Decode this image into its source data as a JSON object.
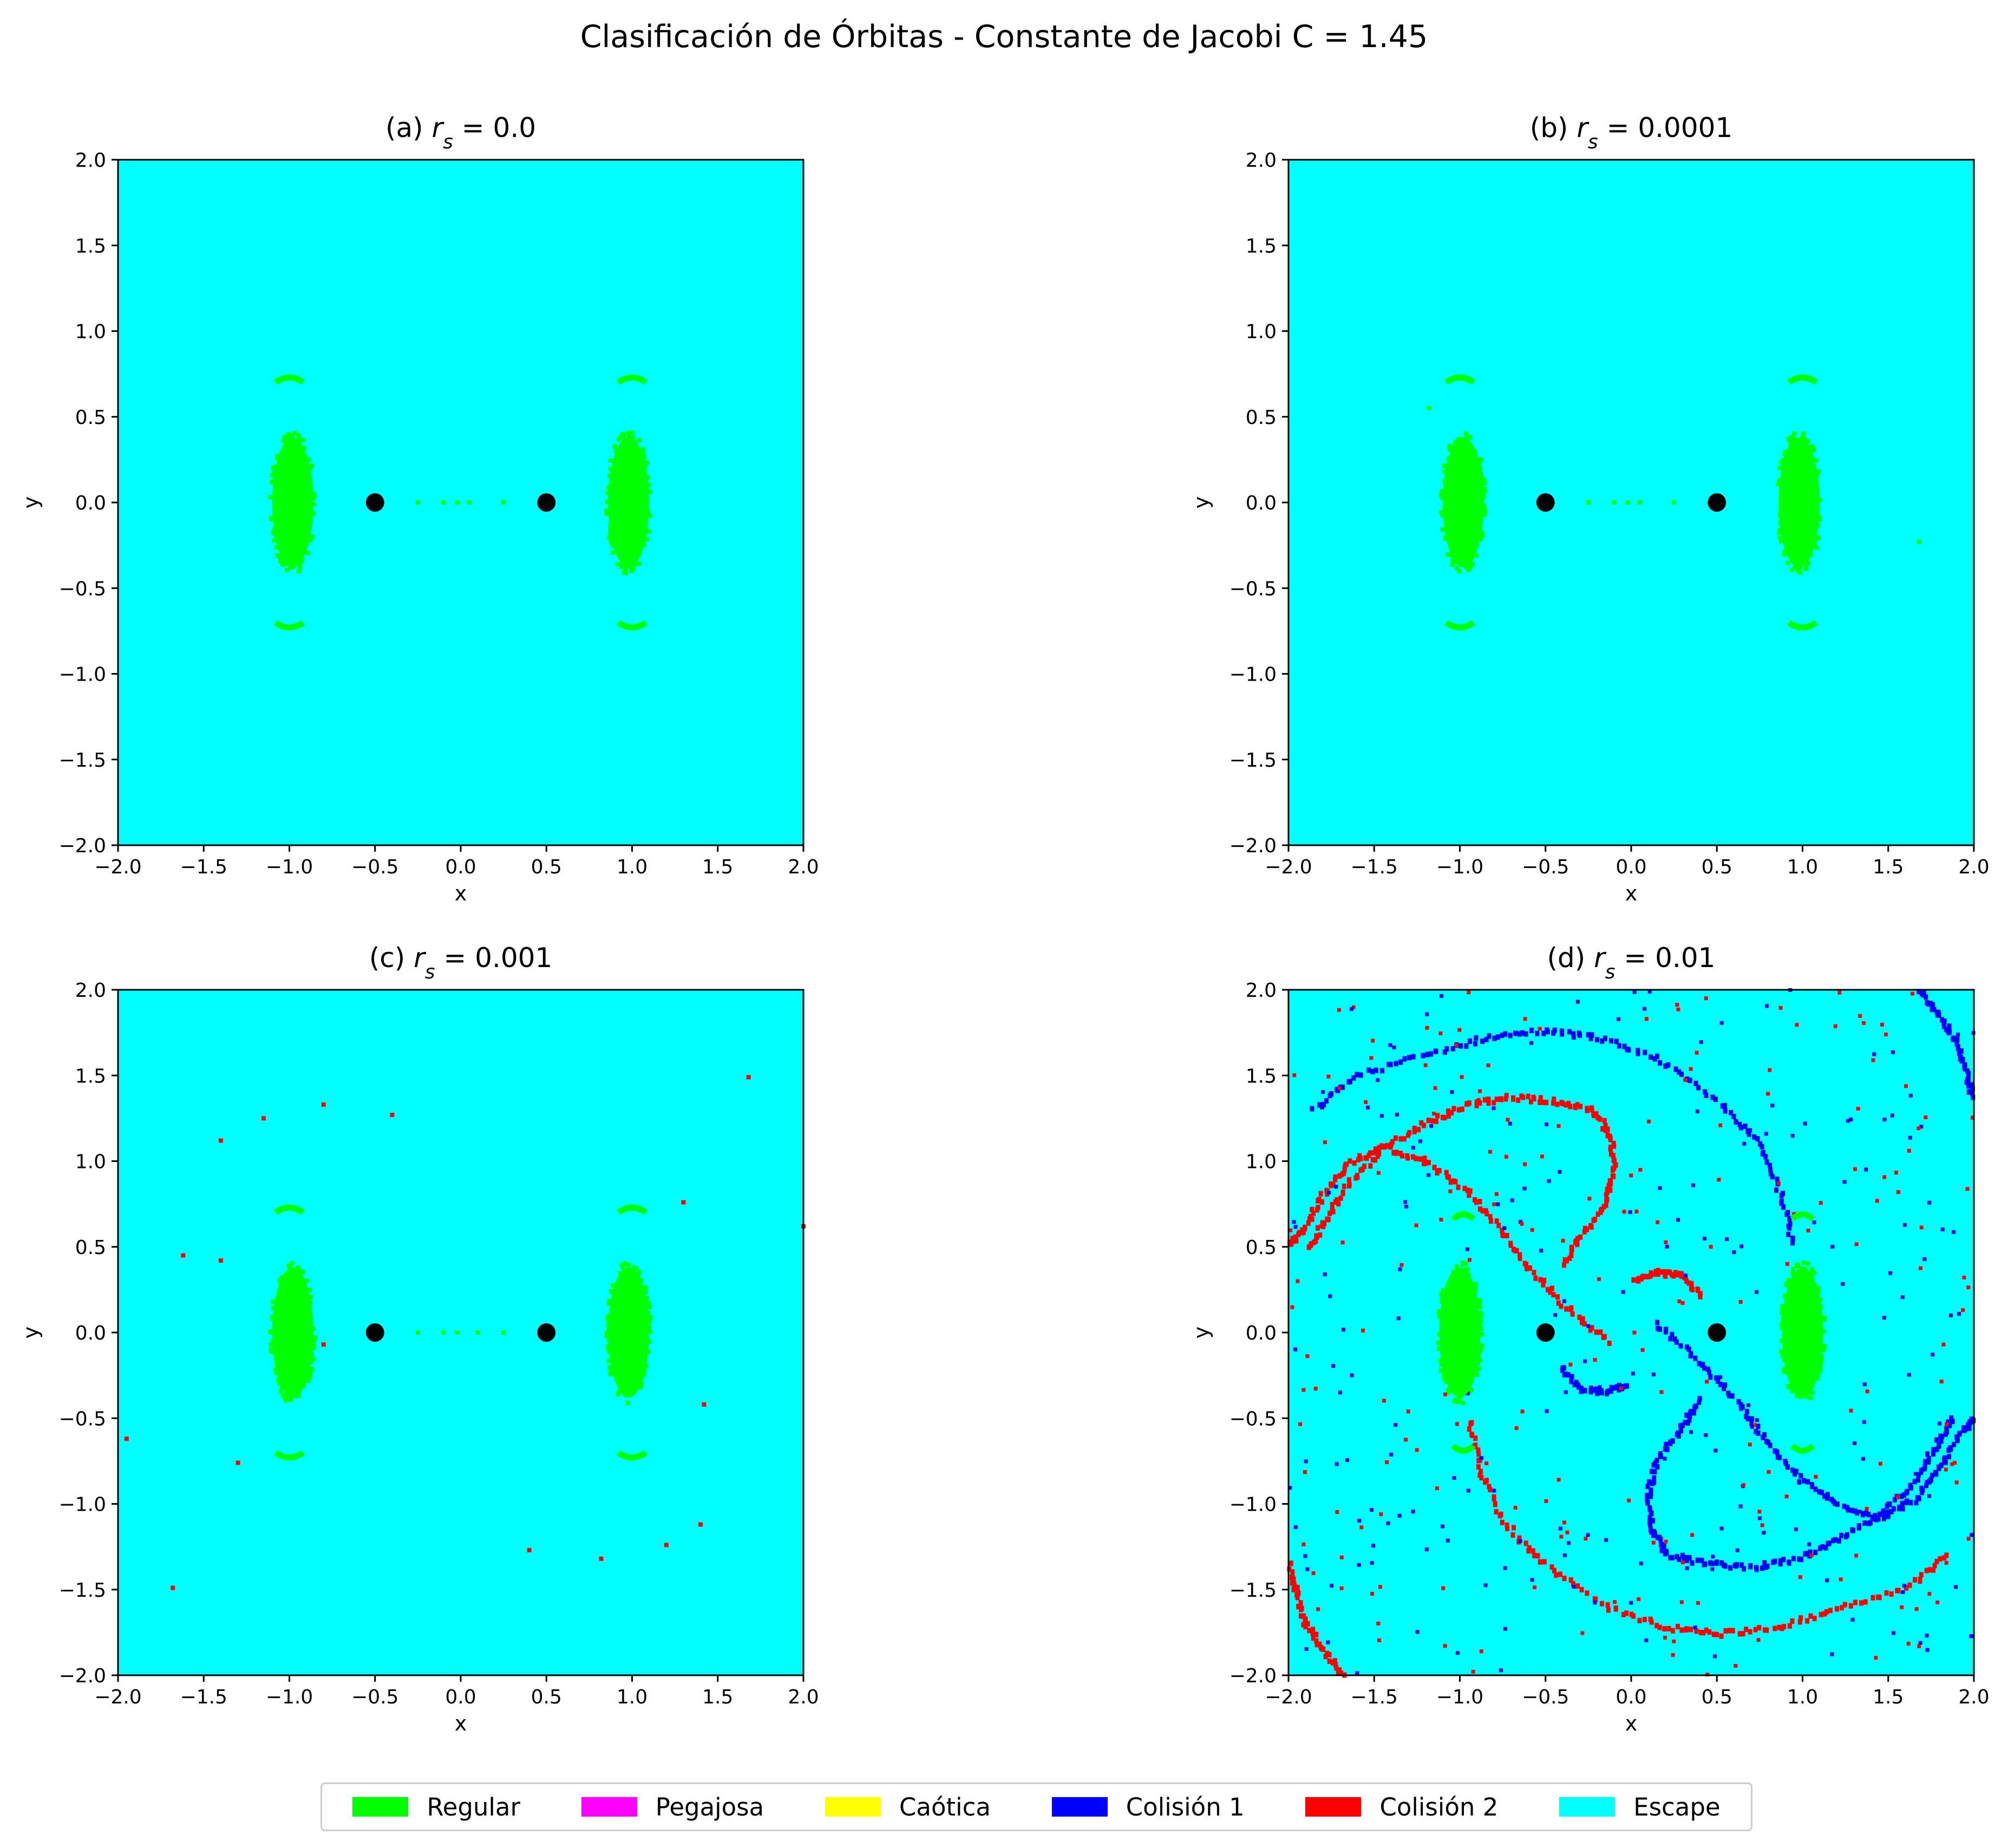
{
  "figure": {
    "title": "Clasificación de Órbitas - Constante de Jacobi C = 1.45"
  },
  "legend": {
    "items": [
      {
        "label": "Regular",
        "color": "#00ff00"
      },
      {
        "label": "Pegajosa",
        "color": "#ff00ff"
      },
      {
        "label": "Caótica",
        "color": "#ffff00"
      },
      {
        "label": "Colisión 1",
        "color": "#0000ff"
      },
      {
        "label": "Colisión 2",
        "color": "#ff0000"
      },
      {
        "label": "Escape",
        "color": "#00ffff"
      }
    ]
  },
  "chart_data": [
    {
      "type": "heatmap",
      "panel": "(a)",
      "rs_value": "0.0",
      "xlabel": "x",
      "ylabel": "y",
      "xlim": [
        -2.0,
        2.0
      ],
      "ylim": [
        -2.0,
        2.0
      ],
      "xticks": [
        "−2.0",
        "−1.5",
        "−1.0",
        "−0.5",
        "0.0",
        "0.5",
        "1.0",
        "1.5",
        "2.0"
      ],
      "yticks": [
        "−2.0",
        "−1.5",
        "−1.0",
        "−0.5",
        "0.0",
        "0.5",
        "1.0",
        "1.5",
        "2.0"
      ],
      "background_class": "Escape",
      "primaries": [
        {
          "x": -0.5,
          "y": 0.0
        },
        {
          "x": 0.5,
          "y": 0.0
        }
      ],
      "regions": [
        {
          "class": "Regular",
          "shape": "ellipse",
          "cx": -0.98,
          "cy": 0.0,
          "rx": 0.12,
          "ry": 0.38
        },
        {
          "class": "Regular",
          "shape": "ellipse",
          "cx": 0.98,
          "cy": 0.0,
          "rx": 0.12,
          "ry": 0.38
        },
        {
          "class": "Regular",
          "shape": "arc",
          "cx": -1.0,
          "cy": 0.72,
          "rx": 0.08
        },
        {
          "class": "Regular",
          "shape": "arc",
          "cx": 1.0,
          "cy": 0.72,
          "rx": 0.08
        },
        {
          "class": "Regular",
          "shape": "arc",
          "cx": -1.0,
          "cy": -0.72,
          "rx": 0.08
        },
        {
          "class": "Regular",
          "shape": "arc",
          "cx": 1.0,
          "cy": -0.72,
          "rx": 0.08
        }
      ],
      "scatter_pixels": [
        {
          "class": "Regular",
          "points": [
            [
              -0.25,
              0.0
            ],
            [
              -0.1,
              0.0
            ],
            [
              -0.02,
              0.0
            ],
            [
              0.05,
              0.0
            ],
            [
              0.25,
              0.0
            ]
          ]
        }
      ]
    },
    {
      "type": "heatmap",
      "panel": "(b)",
      "rs_value": "0.0001",
      "xlabel": "x",
      "ylabel": "y",
      "xlim": [
        -2.0,
        2.0
      ],
      "ylim": [
        -2.0,
        2.0
      ],
      "xticks": [
        "−2.0",
        "−1.5",
        "−1.0",
        "−0.5",
        "0.0",
        "0.5",
        "1.0",
        "1.5",
        "2.0"
      ],
      "yticks": [
        "−2.0",
        "−1.5",
        "−1.0",
        "−0.5",
        "0.0",
        "0.5",
        "1.0",
        "1.5",
        "2.0"
      ],
      "background_class": "Escape",
      "primaries": [
        {
          "x": -0.5,
          "y": 0.0
        },
        {
          "x": 0.5,
          "y": 0.0
        }
      ],
      "regions": [
        {
          "class": "Regular",
          "shape": "ellipse",
          "cx": -0.98,
          "cy": 0.0,
          "rx": 0.12,
          "ry": 0.38
        },
        {
          "class": "Regular",
          "shape": "ellipse",
          "cx": 0.98,
          "cy": 0.0,
          "rx": 0.12,
          "ry": 0.38
        },
        {
          "class": "Regular",
          "shape": "arc",
          "cx": -1.0,
          "cy": 0.72,
          "rx": 0.08
        },
        {
          "class": "Regular",
          "shape": "arc",
          "cx": 1.0,
          "cy": 0.72,
          "rx": 0.08
        },
        {
          "class": "Regular",
          "shape": "arc",
          "cx": -1.0,
          "cy": -0.72,
          "rx": 0.08
        },
        {
          "class": "Regular",
          "shape": "arc",
          "cx": 1.0,
          "cy": -0.72,
          "rx": 0.08
        }
      ],
      "scatter_pixels": [
        {
          "class": "Regular",
          "points": [
            [
              -0.25,
              0.0
            ],
            [
              -0.1,
              0.0
            ],
            [
              -0.02,
              0.0
            ],
            [
              0.05,
              0.0
            ],
            [
              0.25,
              0.0
            ],
            [
              1.68,
              -0.23
            ],
            [
              -1.18,
              0.55
            ]
          ]
        }
      ]
    },
    {
      "type": "heatmap",
      "panel": "(c)",
      "rs_value": "0.001",
      "xlabel": "x",
      "ylabel": "y",
      "xlim": [
        -2.0,
        2.0
      ],
      "ylim": [
        -2.0,
        2.0
      ],
      "xticks": [
        "−2.0",
        "−1.5",
        "−1.0",
        "−0.5",
        "0.0",
        "0.5",
        "1.0",
        "1.5",
        "2.0"
      ],
      "yticks": [
        "−2.0",
        "−1.5",
        "−1.0",
        "−0.5",
        "0.0",
        "0.5",
        "1.0",
        "1.5",
        "2.0"
      ],
      "background_class": "Escape",
      "primaries": [
        {
          "x": -0.5,
          "y": 0.0
        },
        {
          "x": 0.5,
          "y": 0.0
        }
      ],
      "regions": [
        {
          "class": "Regular",
          "shape": "ellipse",
          "cx": -0.98,
          "cy": 0.0,
          "rx": 0.12,
          "ry": 0.38
        },
        {
          "class": "Regular",
          "shape": "ellipse",
          "cx": 0.98,
          "cy": 0.0,
          "rx": 0.12,
          "ry": 0.38
        },
        {
          "class": "Regular",
          "shape": "arc",
          "cx": -1.0,
          "cy": 0.72,
          "rx": 0.08
        },
        {
          "class": "Regular",
          "shape": "arc",
          "cx": 1.0,
          "cy": 0.72,
          "rx": 0.08
        },
        {
          "class": "Regular",
          "shape": "arc",
          "cx": -1.0,
          "cy": -0.72,
          "rx": 0.08
        },
        {
          "class": "Regular",
          "shape": "arc",
          "cx": 1.0,
          "cy": -0.72,
          "rx": 0.08
        }
      ],
      "scatter_pixels": [
        {
          "class": "Regular",
          "points": [
            [
              -0.25,
              0.0
            ],
            [
              -0.1,
              0.0
            ],
            [
              -0.02,
              0.0
            ],
            [
              0.1,
              0.0
            ],
            [
              0.25,
              0.0
            ]
          ]
        },
        {
          "class": "Colisión 2",
          "points": [
            [
              1.68,
              1.49
            ],
            [
              -1.15,
              1.25
            ],
            [
              -1.4,
              1.12
            ],
            [
              -0.8,
              1.33
            ],
            [
              -0.4,
              1.27
            ],
            [
              -1.62,
              0.45
            ],
            [
              -1.4,
              0.42
            ],
            [
              2.0,
              0.62
            ],
            [
              -0.8,
              -0.07
            ],
            [
              1.3,
              0.76
            ],
            [
              1.42,
              -0.42
            ],
            [
              -1.95,
              -0.62
            ],
            [
              -1.3,
              -0.76
            ],
            [
              1.4,
              -1.12
            ],
            [
              1.2,
              -1.24
            ],
            [
              0.4,
              -1.27
            ],
            [
              0.82,
              -1.32
            ],
            [
              -1.68,
              -1.49
            ]
          ]
        }
      ]
    },
    {
      "type": "heatmap",
      "panel": "(d)",
      "rs_value": "0.01",
      "xlabel": "x",
      "ylabel": "y",
      "xlim": [
        -2.0,
        2.0
      ],
      "ylim": [
        -2.0,
        2.0
      ],
      "xticks": [
        "−2.0",
        "−1.5",
        "−1.0",
        "−0.5",
        "0.0",
        "0.5",
        "1.0",
        "1.5",
        "2.0"
      ],
      "yticks": [
        "−2.0",
        "−1.5",
        "−1.0",
        "−0.5",
        "0.0",
        "0.5",
        "1.0",
        "1.5",
        "2.0"
      ],
      "background_class": "Escape",
      "primaries": [
        {
          "x": -0.5,
          "y": 0.0
        },
        {
          "x": 0.5,
          "y": 0.0
        }
      ],
      "regions": [
        {
          "class": "Regular",
          "shape": "ellipse",
          "cx": -1.0,
          "cy": 0.0,
          "rx": 0.12,
          "ry": 0.38
        },
        {
          "class": "Regular",
          "shape": "ellipse",
          "cx": 1.0,
          "cy": 0.0,
          "rx": 0.12,
          "ry": 0.38
        },
        {
          "class": "Regular",
          "shape": "arc",
          "cx": -0.98,
          "cy": 0.68,
          "rx": 0.06
        },
        {
          "class": "Regular",
          "shape": "arc",
          "cx": 1.0,
          "cy": 0.68,
          "rx": 0.06
        },
        {
          "class": "Regular",
          "shape": "arc",
          "cx": -0.98,
          "cy": -0.68,
          "rx": 0.06
        },
        {
          "class": "Regular",
          "shape": "arc",
          "cx": 1.0,
          "cy": -0.68,
          "rx": 0.06
        }
      ],
      "spirals": [
        {
          "class": "Colisión 2",
          "points": [
            [
              -0.14,
              -0.05
            ],
            [
              -0.38,
              0.15
            ],
            [
              -0.6,
              0.38
            ],
            [
              -0.78,
              0.62
            ],
            [
              -0.98,
              0.85
            ],
            [
              -1.2,
              1.0
            ],
            [
              -1.45,
              1.08
            ],
            [
              -1.65,
              0.98
            ],
            [
              -1.8,
              0.8
            ],
            [
              -1.92,
              0.6
            ],
            [
              -2.0,
              0.5
            ]
          ]
        },
        {
          "class": "Colisión 2",
          "points": [
            [
              -0.4,
              0.4
            ],
            [
              -0.3,
              0.55
            ],
            [
              -0.15,
              0.75
            ],
            [
              -0.1,
              0.95
            ],
            [
              -0.12,
              1.15
            ],
            [
              -0.22,
              1.3
            ],
            [
              -0.45,
              1.35
            ],
            [
              -0.7,
              1.37
            ],
            [
              -0.95,
              1.33
            ],
            [
              -1.2,
              1.22
            ],
            [
              -1.45,
              1.07
            ],
            [
              -1.65,
              0.87
            ],
            [
              -1.78,
              0.66
            ],
            [
              -1.88,
              0.48
            ]
          ]
        },
        {
          "class": "Colisión 2",
          "points": [
            [
              0.02,
              0.3
            ],
            [
              0.15,
              0.35
            ],
            [
              0.3,
              0.33
            ],
            [
              0.42,
              0.2
            ]
          ]
        },
        {
          "class": "Colisión 1",
          "points": [
            [
              0.14,
              0.05
            ],
            [
              0.38,
              -0.15
            ],
            [
              0.6,
              -0.38
            ],
            [
              0.78,
              -0.62
            ],
            [
              0.98,
              -0.85
            ],
            [
              1.2,
              -1.0
            ],
            [
              1.45,
              -1.08
            ],
            [
              1.65,
              -0.98
            ],
            [
              1.8,
              -0.8
            ],
            [
              1.92,
              -0.6
            ],
            [
              2.0,
              -0.5
            ]
          ]
        },
        {
          "class": "Colisión 1",
          "points": [
            [
              0.4,
              -0.4
            ],
            [
              0.3,
              -0.55
            ],
            [
              0.15,
              -0.75
            ],
            [
              0.1,
              -0.95
            ],
            [
              0.12,
              -1.15
            ],
            [
              0.22,
              -1.3
            ],
            [
              0.45,
              -1.35
            ],
            [
              0.7,
              -1.37
            ],
            [
              0.95,
              -1.33
            ],
            [
              1.2,
              -1.22
            ],
            [
              1.45,
              -1.07
            ],
            [
              1.65,
              -0.87
            ],
            [
              1.78,
              -0.66
            ],
            [
              1.88,
              -0.48
            ]
          ]
        },
        {
          "class": "Colisión 1",
          "points": [
            [
              -0.02,
              -0.3
            ],
            [
              -0.15,
              -0.35
            ],
            [
              -0.3,
              -0.33
            ],
            [
              -0.42,
              -0.2
            ]
          ]
        },
        {
          "class": "Colisión 1",
          "points": [
            [
              -1.85,
              1.3
            ],
            [
              -1.6,
              1.5
            ],
            [
              -1.2,
              1.62
            ],
            [
              -0.85,
              1.72
            ],
            [
              -0.5,
              1.76
            ],
            [
              -0.2,
              1.72
            ],
            [
              0.15,
              1.6
            ],
            [
              0.5,
              1.35
            ],
            [
              0.75,
              1.1
            ],
            [
              0.88,
              0.8
            ],
            [
              0.95,
              0.5
            ]
          ]
        },
        {
          "class": "Colisión 2",
          "points": [
            [
              1.85,
              -1.3
            ],
            [
              1.6,
              -1.5
            ],
            [
              1.2,
              -1.62
            ],
            [
              0.85,
              -1.72
            ],
            [
              0.5,
              -1.76
            ],
            [
              0.2,
              -1.72
            ],
            [
              -0.15,
              -1.6
            ],
            [
              -0.5,
              -1.35
            ],
            [
              -0.75,
              -1.1
            ],
            [
              -0.88,
              -0.8
            ],
            [
              -0.95,
              -0.5
            ]
          ]
        },
        {
          "class": "Colisión 1",
          "points": [
            [
              1.68,
              2.0
            ],
            [
              1.8,
              1.85
            ],
            [
              1.9,
              1.7
            ],
            [
              1.96,
              1.5
            ],
            [
              2.0,
              1.35
            ]
          ]
        },
        {
          "class": "Colisión 2",
          "points": [
            [
              -1.68,
              -2.0
            ],
            [
              -1.8,
              -1.85
            ],
            [
              -1.9,
              -1.7
            ],
            [
              -1.96,
              -1.5
            ],
            [
              -2.0,
              -1.35
            ]
          ]
        }
      ],
      "scatter_classes": [
        "Colisión 1",
        "Colisión 2"
      ]
    }
  ]
}
